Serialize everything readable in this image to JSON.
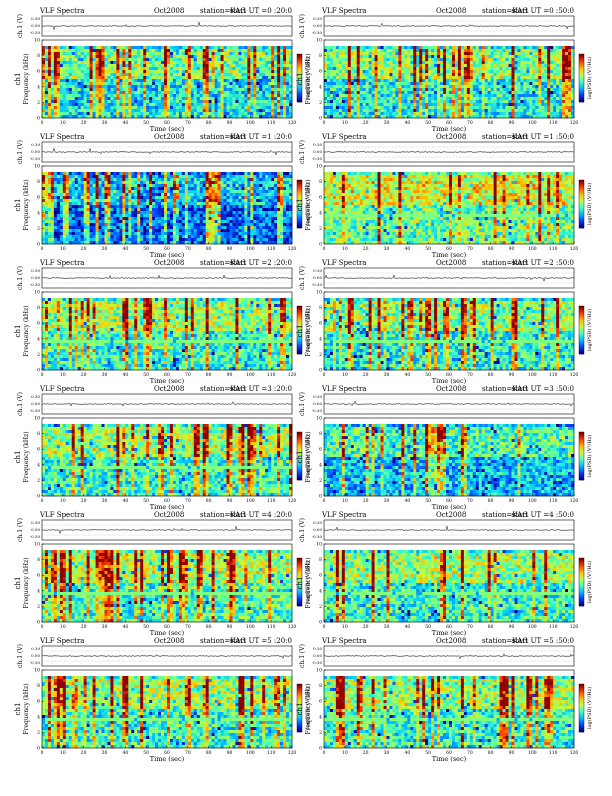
{
  "page": {
    "kind": "vlf-spectrogram-sheet",
    "header_title": "VLF Spectra",
    "header_date": "Oct2008",
    "header_station": "station=KAG",
    "header_start_prefix": "start UT ="
  },
  "chart_data": [
    {
      "type": "heatmap",
      "title": "VLF Spectra",
      "date": "Oct2008",
      "station": "station=KAG",
      "start_ut": "0 :20:0",
      "channel_label": "ch1",
      "xlabel": "Time (sec)",
      "ylabel": "Frequency (kHz)",
      "top_ylabel": "ch.1 (V)",
      "colorbar_label": "log(PSD) (V²/Hz)",
      "xlim": [
        0,
        120
      ],
      "ylim": [
        0,
        10
      ],
      "xticks": [
        "0",
        "10",
        "20",
        "30",
        "40",
        "50",
        "60",
        "70",
        "80",
        "90",
        "100",
        "110",
        "120"
      ],
      "yticks": [
        "0",
        "2",
        "4",
        "6",
        "8",
        "10"
      ],
      "top_yticks": [
        "0.30",
        "0.00",
        "-0.30"
      ],
      "colormap": [
        "#00008f",
        "#0040ff",
        "#00bfff",
        "#40ffbf",
        "#bfff40",
        "#ffbf00",
        "#ff4000",
        "#8f0000"
      ],
      "seed": 11,
      "burstiness": 0.55,
      "quiet_level": 0.35,
      "band_line": false
    },
    {
      "type": "heatmap",
      "title": "VLF Spectra",
      "date": "Oct2008",
      "station": "station=KAG",
      "start_ut": "0 :50:0",
      "channel_label": "ch1",
      "xlabel": "Time (sec)",
      "ylabel": "Frequency (kHz)",
      "top_ylabel": "ch.1 (V)",
      "colorbar_label": "log(PSD) (V²/Hz)",
      "xlim": [
        0,
        120
      ],
      "ylim": [
        0,
        10
      ],
      "xticks": [
        "0",
        "10",
        "20",
        "30",
        "40",
        "50",
        "60",
        "70",
        "80",
        "90",
        "100",
        "110",
        "120"
      ],
      "yticks": [
        "0",
        "2",
        "4",
        "6",
        "8",
        "10"
      ],
      "top_yticks": [
        "0.30",
        "0.00",
        "-0.30"
      ],
      "colormap": [
        "#00008f",
        "#0040ff",
        "#00bfff",
        "#40ffbf",
        "#bfff40",
        "#ffbf00",
        "#ff4000",
        "#8f0000"
      ],
      "seed": 23,
      "burstiness": 0.5,
      "quiet_level": 0.38,
      "band_line": false
    },
    {
      "type": "heatmap",
      "title": "VLF Spectra",
      "date": "Oct2008",
      "station": "station=KAG",
      "start_ut": "1 :20:0",
      "channel_label": "ch1",
      "xlabel": "Time (sec)",
      "ylabel": "Frequency (kHz)",
      "top_ylabel": "ch.1 (V)",
      "colorbar_label": "log(PSD) (V²/Hz)",
      "xlim": [
        0,
        120
      ],
      "ylim": [
        0,
        10
      ],
      "xticks": [
        "0",
        "10",
        "20",
        "30",
        "40",
        "50",
        "60",
        "70",
        "80",
        "90",
        "100",
        "110",
        "120"
      ],
      "yticks": [
        "0",
        "2",
        "4",
        "6",
        "8",
        "10"
      ],
      "top_yticks": [
        "0.30",
        "0.00",
        "-0.30"
      ],
      "colormap": [
        "#00008f",
        "#0040ff",
        "#00bfff",
        "#40ffbf",
        "#bfff40",
        "#ffbf00",
        "#ff4000",
        "#8f0000"
      ],
      "seed": 37,
      "burstiness": 0.65,
      "quiet_level": 0.18,
      "band_line": false
    },
    {
      "type": "heatmap",
      "title": "VLF Spectra",
      "date": "Oct2008",
      "station": "station=KAG",
      "start_ut": "1 :50:0",
      "channel_label": "ch1",
      "xlabel": "Time (sec)",
      "ylabel": "Frequency (kHz)",
      "top_ylabel": "ch.1 (V)",
      "colorbar_label": "log(PSD) (V²/Hz)",
      "xlim": [
        0,
        120
      ],
      "ylim": [
        0,
        10
      ],
      "xticks": [
        "0",
        "10",
        "20",
        "30",
        "40",
        "50",
        "60",
        "70",
        "80",
        "90",
        "100",
        "110",
        "120"
      ],
      "yticks": [
        "0",
        "2",
        "4",
        "6",
        "8",
        "10"
      ],
      "top_yticks": [
        "0.30",
        "0.00",
        "-0.30"
      ],
      "colormap": [
        "#00008f",
        "#0040ff",
        "#00bfff",
        "#40ffbf",
        "#bfff40",
        "#ffbf00",
        "#ff4000",
        "#8f0000"
      ],
      "seed": 41,
      "burstiness": 0.4,
      "quiet_level": 0.48,
      "band_line": true
    },
    {
      "type": "heatmap",
      "title": "VLF Spectra",
      "date": "Oct2008",
      "station": "station=KAG",
      "start_ut": "2 :20:0",
      "channel_label": "ch1",
      "xlabel": "Time (sec)",
      "ylabel": "Frequency (kHz)",
      "top_ylabel": "ch.1 (V)",
      "colorbar_label": "log(PSD) (V²/Hz)",
      "xlim": [
        0,
        120
      ],
      "ylim": [
        0,
        10
      ],
      "xticks": [
        "0",
        "10",
        "20",
        "30",
        "40",
        "50",
        "60",
        "70",
        "80",
        "90",
        "100",
        "110",
        "120"
      ],
      "yticks": [
        "0",
        "2",
        "4",
        "6",
        "8",
        "10"
      ],
      "top_yticks": [
        "0.30",
        "0.00",
        "-0.30"
      ],
      "colormap": [
        "#00008f",
        "#0040ff",
        "#00bfff",
        "#40ffbf",
        "#bfff40",
        "#ffbf00",
        "#ff4000",
        "#8f0000"
      ],
      "seed": 53,
      "burstiness": 0.45,
      "quiet_level": 0.4,
      "band_line": true
    },
    {
      "type": "heatmap",
      "title": "VLF Spectra",
      "date": "Oct2008",
      "station": "station=KAG",
      "start_ut": "2 :50:0",
      "channel_label": "ch1",
      "xlabel": "Time (sec)",
      "ylabel": "Frequency (kHz)",
      "top_ylabel": "ch.1 (V)",
      "colorbar_label": "log(PSD) (V²/Hz)",
      "xlim": [
        0,
        120
      ],
      "ylim": [
        0,
        10
      ],
      "xticks": [
        "0",
        "10",
        "20",
        "30",
        "40",
        "50",
        "60",
        "70",
        "80",
        "90",
        "100",
        "110",
        "120"
      ],
      "yticks": [
        "0",
        "2",
        "4",
        "6",
        "8",
        "10"
      ],
      "top_yticks": [
        "0.30",
        "0.00",
        "-0.30"
      ],
      "colormap": [
        "#00008f",
        "#0040ff",
        "#00bfff",
        "#40ffbf",
        "#bfff40",
        "#ffbf00",
        "#ff4000",
        "#8f0000"
      ],
      "seed": 67,
      "burstiness": 0.5,
      "quiet_level": 0.38,
      "band_line": true
    },
    {
      "type": "heatmap",
      "title": "VLF Spectra",
      "date": "Oct2008",
      "station": "station=KAG",
      "start_ut": "3 :20:0",
      "channel_label": "ch1",
      "xlabel": "Time (sec)",
      "ylabel": "Frequency (kHz)",
      "top_ylabel": "ch.1 (V)",
      "colorbar_label": "log(PSD) (V²/Hz)",
      "xlim": [
        0,
        120
      ],
      "ylim": [
        0,
        10
      ],
      "xticks": [
        "0",
        "10",
        "20",
        "30",
        "40",
        "50",
        "60",
        "70",
        "80",
        "90",
        "100",
        "110",
        "120"
      ],
      "yticks": [
        "0",
        "2",
        "4",
        "6",
        "8",
        "10"
      ],
      "top_yticks": [
        "0.30",
        "0.00",
        "-0.30"
      ],
      "colormap": [
        "#00008f",
        "#0040ff",
        "#00bfff",
        "#40ffbf",
        "#bfff40",
        "#ffbf00",
        "#ff4000",
        "#8f0000"
      ],
      "seed": 71,
      "burstiness": 0.55,
      "quiet_level": 0.4,
      "band_line": true
    },
    {
      "type": "heatmap",
      "title": "VLF Spectra",
      "date": "Oct2008",
      "station": "station=KAG",
      "start_ut": "3 :50:0",
      "channel_label": "ch1",
      "xlabel": "Time (sec)",
      "ylabel": "Frequency (kHz)",
      "top_ylabel": "ch.1 (V)",
      "colorbar_label": "log(PSD) (V²/Hz)",
      "xlim": [
        0,
        120
      ],
      "ylim": [
        0,
        10
      ],
      "xticks": [
        "0",
        "10",
        "20",
        "30",
        "40",
        "50",
        "60",
        "70",
        "80",
        "90",
        "100",
        "110",
        "120"
      ],
      "yticks": [
        "0",
        "2",
        "4",
        "6",
        "8",
        "10"
      ],
      "top_yticks": [
        "0.30",
        "0.00",
        "-0.30"
      ],
      "colormap": [
        "#00008f",
        "#0040ff",
        "#00bfff",
        "#40ffbf",
        "#bfff40",
        "#ffbf00",
        "#ff4000",
        "#8f0000"
      ],
      "seed": 83,
      "burstiness": 0.5,
      "quiet_level": 0.3,
      "band_line": false
    },
    {
      "type": "heatmap",
      "title": "VLF Spectra",
      "date": "Oct2008",
      "station": "station=KAG",
      "start_ut": "4 :20:0",
      "channel_label": "ch1",
      "xlabel": "Time (sec)",
      "ylabel": "Frequency (kHz)",
      "top_ylabel": "ch.1 (V)",
      "colorbar_label": "log(PSD) (V²/Hz)",
      "xlim": [
        0,
        120
      ],
      "ylim": [
        0,
        10
      ],
      "xticks": [
        "0",
        "10",
        "20",
        "30",
        "40",
        "50",
        "60",
        "70",
        "80",
        "90",
        "100",
        "110",
        "120"
      ],
      "yticks": [
        "0",
        "2",
        "4",
        "6",
        "8",
        "10"
      ],
      "top_yticks": [
        "0.30",
        "0.00",
        "-0.30"
      ],
      "colormap": [
        "#00008f",
        "#0040ff",
        "#00bfff",
        "#40ffbf",
        "#bfff40",
        "#ffbf00",
        "#ff4000",
        "#8f0000"
      ],
      "seed": 97,
      "burstiness": 0.45,
      "quiet_level": 0.42,
      "band_line": true
    },
    {
      "type": "heatmap",
      "title": "VLF Spectra",
      "date": "Oct2008",
      "station": "station=KAG",
      "start_ut": "4 :50:0",
      "channel_label": "ch1",
      "xlabel": "Time (sec)",
      "ylabel": "Frequency (kHz)",
      "top_ylabel": "ch.1 (V)",
      "colorbar_label": "log(PSD) (V²/Hz)",
      "xlim": [
        0,
        120
      ],
      "ylim": [
        0,
        10
      ],
      "xticks": [
        "0",
        "10",
        "20",
        "30",
        "40",
        "50",
        "60",
        "70",
        "80",
        "90",
        "100",
        "110",
        "120"
      ],
      "yticks": [
        "0",
        "2",
        "4",
        "6",
        "8",
        "10"
      ],
      "top_yticks": [
        "0.30",
        "0.00",
        "-0.30"
      ],
      "colormap": [
        "#00008f",
        "#0040ff",
        "#00bfff",
        "#40ffbf",
        "#bfff40",
        "#ffbf00",
        "#ff4000",
        "#8f0000"
      ],
      "seed": 103,
      "burstiness": 0.45,
      "quiet_level": 0.4,
      "band_line": true
    },
    {
      "type": "heatmap",
      "title": "VLF Spectra",
      "date": "Oct2008",
      "station": "station=KAG",
      "start_ut": "5 :20:0",
      "channel_label": "ch1",
      "xlabel": "Time (sec)",
      "ylabel": "Frequency (kHz)",
      "top_ylabel": "ch.1 (V)",
      "colorbar_label": "log(PSD) (V²/Hz)",
      "xlim": [
        0,
        120
      ],
      "ylim": [
        0,
        10
      ],
      "xticks": [
        "0",
        "10",
        "20",
        "30",
        "40",
        "50",
        "60",
        "70",
        "80",
        "90",
        "100",
        "110",
        "120"
      ],
      "yticks": [
        "0",
        "2",
        "4",
        "6",
        "8",
        "10"
      ],
      "top_yticks": [
        "0.30",
        "0.00",
        "-0.30"
      ],
      "colormap": [
        "#00008f",
        "#0040ff",
        "#00bfff",
        "#40ffbf",
        "#bfff40",
        "#ffbf00",
        "#ff4000",
        "#8f0000"
      ],
      "seed": 113,
      "burstiness": 0.55,
      "quiet_level": 0.4,
      "band_line": true
    },
    {
      "type": "heatmap",
      "title": "VLF Spectra",
      "date": "Oct2008",
      "station": "station=KAG",
      "start_ut": "5 :50:0",
      "channel_label": "ch1",
      "xlabel": "Time (sec)",
      "ylabel": "Frequency (kHz)",
      "top_ylabel": "ch.1 (V)",
      "colorbar_label": "log(PSD) (V²/Hz)",
      "xlim": [
        0,
        120
      ],
      "ylim": [
        0,
        10
      ],
      "xticks": [
        "0",
        "10",
        "20",
        "30",
        "40",
        "50",
        "60",
        "70",
        "80",
        "90",
        "100",
        "110",
        "120"
      ],
      "yticks": [
        "0",
        "2",
        "4",
        "6",
        "8",
        "10"
      ],
      "top_yticks": [
        "0.30",
        "0.00",
        "-0.30"
      ],
      "colormap": [
        "#00008f",
        "#0040ff",
        "#00bfff",
        "#40ffbf",
        "#bfff40",
        "#ffbf00",
        "#ff4000",
        "#8f0000"
      ],
      "seed": 127,
      "burstiness": 0.55,
      "quiet_level": 0.4,
      "band_line": true
    }
  ]
}
